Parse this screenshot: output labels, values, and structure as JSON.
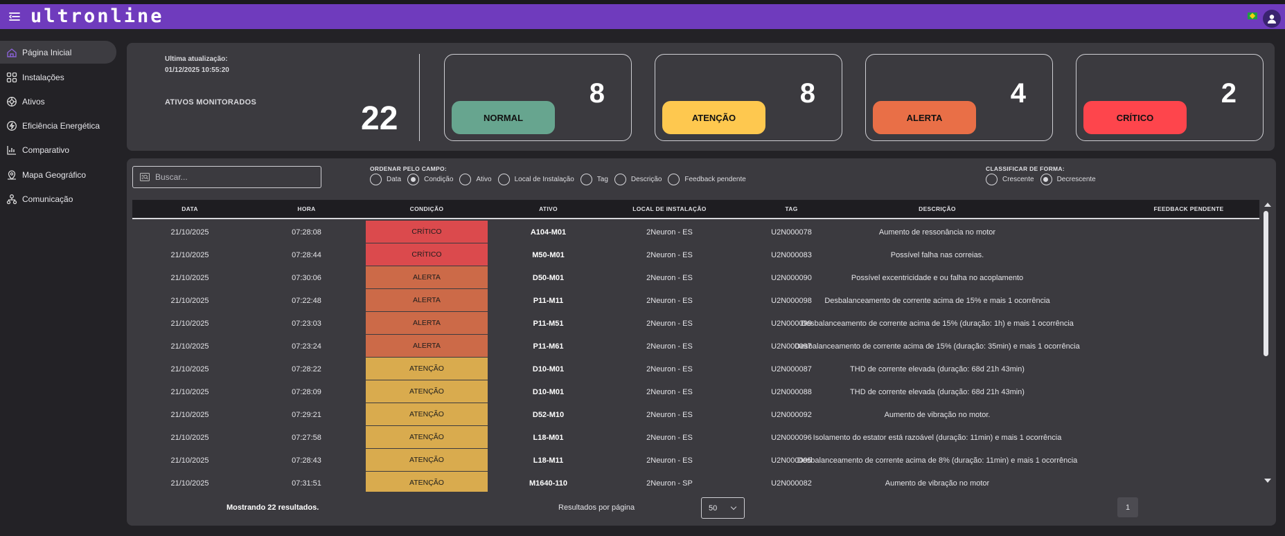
{
  "app": {
    "logo_text": "ultronline"
  },
  "topbar": {
    "menu_icon": "menu-icon",
    "flag_icon": "brazil-flag-icon",
    "avatar_icon": "user-avatar-icon"
  },
  "sidebar": {
    "items": [
      {
        "label": "Página Inicial",
        "icon": "home-icon",
        "active": true
      },
      {
        "label": "Instalações",
        "icon": "grid-icon"
      },
      {
        "label": "Ativos",
        "icon": "target-icon"
      },
      {
        "label": "Eficiência Energética",
        "icon": "lightning-icon"
      },
      {
        "label": "Comparativo",
        "icon": "chart-icon"
      },
      {
        "label": "Mapa Geográfico",
        "icon": "map-pin-icon"
      },
      {
        "label": "Comunicação",
        "icon": "network-icon"
      }
    ]
  },
  "summary": {
    "last_update_label": "Ultima atualização:",
    "last_update_value": "01/12/2025 10:55:20",
    "monitored_label": "ATIVOS MONITORADOS",
    "monitored_value": "22",
    "cards": [
      {
        "label": "NORMAL",
        "value": "8",
        "color": "#67a58f"
      },
      {
        "label": "ATENÇÃO",
        "value": "8",
        "color": "#fec84f"
      },
      {
        "label": "ALERTA",
        "value": "4",
        "color": "#e96f47"
      },
      {
        "label": "CRÍTICO",
        "value": "2",
        "color": "#fe454c"
      }
    ]
  },
  "filters": {
    "search_placeholder": "Buscar...",
    "order_label": "ORDENAR PELO CAMPO:",
    "order_options": [
      {
        "label": "Data",
        "selected": false
      },
      {
        "label": "Condição",
        "selected": true
      },
      {
        "label": "Ativo",
        "selected": false
      },
      {
        "label": "Local de Instalação",
        "selected": false
      },
      {
        "label": "Tag",
        "selected": false
      },
      {
        "label": "Descrição",
        "selected": false
      },
      {
        "label": "Feedback pendente",
        "selected": false
      }
    ],
    "sort_label": "CLASSIFICAR DE FORMA:",
    "sort_options": [
      {
        "label": "Crescente",
        "selected": false
      },
      {
        "label": "Decrescente",
        "selected": true
      }
    ]
  },
  "table": {
    "columns": [
      "DATA",
      "HORA",
      "CONDIÇÃO",
      "ATIVO",
      "LOCAL DE INSTALAÇÃO",
      "TAG",
      "DESCRIÇÃO",
      "FEEDBACK PENDENTE"
    ],
    "condition_colors": {
      "CRÍTICO": "#db4a4d",
      "ALERTA": "#cc6a48",
      "ATENÇÃO": "#d9ab4e"
    },
    "rows": [
      {
        "data": "21/10/2025",
        "hora": "07:28:08",
        "condicao": "CRÍTICO",
        "ativo": "A104-M01",
        "local": "2Neuron - ES",
        "tag": "U2N000078",
        "descricao": "Aumento de ressonância no motor",
        "feedback": ""
      },
      {
        "data": "21/10/2025",
        "hora": "07:28:44",
        "condicao": "CRÍTICO",
        "ativo": "M50-M01",
        "local": "2Neuron - ES",
        "tag": "U2N000083",
        "descricao": "Possível falha nas correias.",
        "feedback": ""
      },
      {
        "data": "21/10/2025",
        "hora": "07:30:06",
        "condicao": "ALERTA",
        "ativo": "D50-M01",
        "local": "2Neuron - ES",
        "tag": "U2N000090",
        "descricao": "Possível excentricidade e ou falha no acoplamento",
        "feedback": ""
      },
      {
        "data": "21/10/2025",
        "hora": "07:22:48",
        "condicao": "ALERTA",
        "ativo": "P11-M11",
        "local": "2Neuron - ES",
        "tag": "U2N000098",
        "descricao": "Desbalanceamento de corrente acima de 15% e mais 1 ocorrência",
        "feedback": ""
      },
      {
        "data": "21/10/2025",
        "hora": "07:23:03",
        "condicao": "ALERTA",
        "ativo": "P11-M51",
        "local": "2Neuron - ES",
        "tag": "U2N000099",
        "descricao": "Desbalanceamento de corrente acima de 15% (duração: 1h) e mais 1 ocorrência",
        "feedback": ""
      },
      {
        "data": "21/10/2025",
        "hora": "07:23:24",
        "condicao": "ALERTA",
        "ativo": "P11-M61",
        "local": "2Neuron - ES",
        "tag": "U2N000097",
        "descricao": "Desbalanceamento de corrente acima de 15% (duração: 35min) e mais 1 ocorrência",
        "feedback": ""
      },
      {
        "data": "21/10/2025",
        "hora": "07:28:22",
        "condicao": "ATENÇÃO",
        "ativo": "D10-M01",
        "local": "2Neuron - ES",
        "tag": "U2N000087",
        "descricao": "THD de corrente elevada (duração: 68d 21h 43min)",
        "feedback": ""
      },
      {
        "data": "21/10/2025",
        "hora": "07:28:09",
        "condicao": "ATENÇÃO",
        "ativo": "D10-M01",
        "local": "2Neuron - ES",
        "tag": "U2N000088",
        "descricao": "THD de corrente elevada (duração: 68d 21h 43min)",
        "feedback": ""
      },
      {
        "data": "21/10/2025",
        "hora": "07:29:21",
        "condicao": "ATENÇÃO",
        "ativo": "D52-M10",
        "local": "2Neuron - ES",
        "tag": "U2N000092",
        "descricao": "Aumento de vibração no motor.",
        "feedback": ""
      },
      {
        "data": "21/10/2025",
        "hora": "07:27:58",
        "condicao": "ATENÇÃO",
        "ativo": "L18-M01",
        "local": "2Neuron - ES",
        "tag": "U2N000096",
        "descricao": "Isolamento do estator está razoável (duração: 11min) e mais 1 ocorrência",
        "feedback": ""
      },
      {
        "data": "21/10/2025",
        "hora": "07:28:43",
        "condicao": "ATENÇÃO",
        "ativo": "L18-M11",
        "local": "2Neuron - ES",
        "tag": "U2N000095",
        "descricao": "Desbalanceamento de corrente acima de 8% (duração: 11min) e mais 1 ocorrência",
        "feedback": ""
      },
      {
        "data": "21/10/2025",
        "hora": "07:31:51",
        "condicao": "ATENÇÃO",
        "ativo": "M1640-110",
        "local": "2Neuron - SP",
        "tag": "U2N000082",
        "descricao": "Aumento de vibração no motor",
        "feedback": ""
      }
    ]
  },
  "footer": {
    "results_text": "Mostrando 22 resultados.",
    "per_page_label": "Resultados por página",
    "per_page_value": "50",
    "current_page": "1"
  }
}
